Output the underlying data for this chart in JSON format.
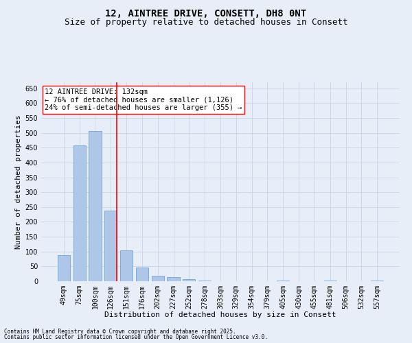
{
  "title_line1": "12, AINTREE DRIVE, CONSETT, DH8 0NT",
  "title_line2": "Size of property relative to detached houses in Consett",
  "xlabel": "Distribution of detached houses by size in Consett",
  "ylabel": "Number of detached properties",
  "categories": [
    "49sqm",
    "75sqm",
    "100sqm",
    "126sqm",
    "151sqm",
    "176sqm",
    "202sqm",
    "227sqm",
    "252sqm",
    "278sqm",
    "303sqm",
    "329sqm",
    "354sqm",
    "379sqm",
    "405sqm",
    "430sqm",
    "455sqm",
    "481sqm",
    "506sqm",
    "532sqm",
    "557sqm"
  ],
  "values": [
    88,
    458,
    507,
    238,
    103,
    47,
    18,
    13,
    8,
    3,
    0,
    0,
    0,
    0,
    3,
    0,
    0,
    3,
    0,
    0,
    3
  ],
  "bar_color": "#aec6e8",
  "bar_edge_color": "#5b9bd5",
  "vline_color": "red",
  "vline_x_index": 3,
  "annotation_text": "12 AINTREE DRIVE: 132sqm\n← 76% of detached houses are smaller (1,126)\n24% of semi-detached houses are larger (355) →",
  "annotation_box_color": "white",
  "annotation_box_edge_color": "red",
  "ylim": [
    0,
    670
  ],
  "yticks": [
    0,
    50,
    100,
    150,
    200,
    250,
    300,
    350,
    400,
    450,
    500,
    550,
    600,
    650
  ],
  "grid_color": "#c8d4e8",
  "background_color": "#e8eef7",
  "footer_line1": "Contains HM Land Registry data © Crown copyright and database right 2025.",
  "footer_line2": "Contains public sector information licensed under the Open Government Licence v3.0.",
  "title_fontsize": 10,
  "subtitle_fontsize": 9,
  "axis_label_fontsize": 8,
  "tick_fontsize": 7,
  "annotation_fontsize": 7.5,
  "footer_fontsize": 5.5
}
